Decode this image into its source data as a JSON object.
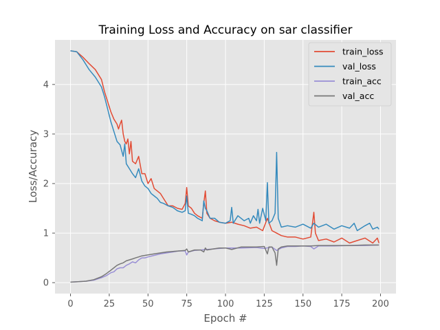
{
  "chart_data": {
    "type": "line",
    "title": "Training Loss and Accuracy on sar classifier",
    "xlabel": "Epoch #",
    "ylabel": "Loss/Accuracy",
    "xlim": [
      -10,
      210
    ],
    "ylim": [
      -0.22,
      4.9
    ],
    "xticks": [
      0,
      25,
      50,
      75,
      100,
      125,
      150,
      175,
      200
    ],
    "yticks": [
      0,
      1,
      2,
      3,
      4
    ],
    "grid": true,
    "legend_position": "top-right",
    "series": [
      {
        "name": "train_loss",
        "color": "#E24A33",
        "x": [
          0,
          4,
          8,
          12,
          16,
          20,
          22,
          24,
          26,
          28,
          30,
          31,
          32,
          33,
          34,
          35,
          36,
          37,
          38,
          39,
          40,
          42,
          44,
          46,
          48,
          50,
          52,
          54,
          56,
          58,
          60,
          63,
          66,
          69,
          72,
          74,
          75,
          76,
          78,
          80,
          82,
          85,
          86,
          87,
          88,
          90,
          93,
          96,
          100,
          104,
          108,
          112,
          116,
          120,
          124,
          127,
          130,
          133,
          136,
          140,
          145,
          150,
          155,
          157,
          158,
          160,
          165,
          170,
          175,
          180,
          185,
          190,
          195,
          198,
          199
        ],
        "y": [
          4.68,
          4.66,
          4.55,
          4.42,
          4.3,
          4.1,
          3.85,
          3.65,
          3.45,
          3.3,
          3.2,
          3.1,
          3.2,
          3.28,
          3.0,
          2.85,
          2.8,
          2.9,
          2.6,
          2.85,
          2.45,
          2.4,
          2.55,
          2.2,
          2.2,
          2.0,
          2.1,
          1.9,
          1.85,
          1.8,
          1.7,
          1.55,
          1.55,
          1.5,
          1.48,
          1.6,
          1.92,
          1.55,
          1.5,
          1.4,
          1.35,
          1.3,
          1.6,
          1.85,
          1.4,
          1.3,
          1.25,
          1.22,
          1.2,
          1.22,
          1.18,
          1.15,
          1.1,
          1.12,
          1.05,
          1.3,
          1.05,
          1.0,
          0.95,
          0.92,
          0.92,
          0.88,
          0.92,
          1.42,
          1.0,
          0.85,
          0.88,
          0.82,
          0.9,
          0.8,
          0.85,
          0.9,
          0.8,
          0.9,
          0.8
        ]
      },
      {
        "name": "val_loss",
        "color": "#348ABD",
        "x": [
          0,
          4,
          8,
          12,
          16,
          20,
          22,
          24,
          26,
          28,
          30,
          32,
          34,
          35,
          36,
          38,
          40,
          42,
          44,
          46,
          48,
          50,
          52,
          54,
          56,
          58,
          60,
          63,
          66,
          69,
          72,
          74,
          75,
          76,
          78,
          80,
          82,
          85,
          86,
          87,
          88,
          90,
          93,
          96,
          100,
          103,
          104,
          105,
          108,
          112,
          115,
          116,
          118,
          120,
          121,
          122,
          124,
          126,
          127,
          128,
          130,
          132,
          133,
          134,
          136,
          140,
          145,
          150,
          155,
          157,
          160,
          165,
          170,
          175,
          180,
          183,
          185,
          190,
          193,
          195,
          198,
          199
        ],
        "y": [
          4.68,
          4.66,
          4.5,
          4.3,
          4.15,
          3.95,
          3.75,
          3.5,
          3.25,
          3.05,
          2.85,
          2.78,
          2.55,
          2.8,
          2.4,
          2.3,
          2.2,
          2.12,
          2.3,
          2.05,
          1.95,
          1.9,
          1.8,
          1.75,
          1.7,
          1.62,
          1.6,
          1.55,
          1.52,
          1.45,
          1.42,
          1.45,
          1.75,
          1.4,
          1.38,
          1.35,
          1.3,
          1.25,
          1.65,
          1.5,
          1.45,
          1.3,
          1.3,
          1.22,
          1.2,
          1.25,
          1.52,
          1.2,
          1.35,
          1.25,
          1.3,
          1.2,
          1.35,
          1.25,
          1.48,
          1.2,
          1.5,
          1.25,
          2.02,
          1.2,
          1.25,
          1.4,
          2.63,
          1.3,
          1.12,
          1.15,
          1.12,
          1.18,
          1.1,
          1.2,
          1.12,
          1.18,
          1.08,
          1.15,
          1.1,
          1.2,
          1.05,
          1.15,
          1.2,
          1.08,
          1.12,
          1.08
        ]
      },
      {
        "name": "train_acc",
        "color": "#988ED5",
        "x": [
          0,
          5,
          10,
          15,
          20,
          23,
          26,
          28,
          30,
          32,
          34,
          36,
          38,
          40,
          42,
          44,
          46,
          48,
          50,
          54,
          58,
          62,
          66,
          70,
          74,
          75,
          76,
          80,
          84,
          88,
          92,
          96,
          100,
          110,
          120,
          125,
          130,
          133,
          136,
          140,
          145,
          150,
          155,
          157,
          160,
          170,
          180,
          190,
          199
        ],
        "y": [
          0.01,
          0.02,
          0.03,
          0.05,
          0.1,
          0.14,
          0.2,
          0.22,
          0.28,
          0.3,
          0.3,
          0.35,
          0.38,
          0.42,
          0.4,
          0.46,
          0.5,
          0.5,
          0.52,
          0.55,
          0.58,
          0.6,
          0.62,
          0.64,
          0.64,
          0.56,
          0.62,
          0.65,
          0.66,
          0.67,
          0.68,
          0.69,
          0.7,
          0.7,
          0.71,
          0.69,
          0.72,
          0.65,
          0.7,
          0.73,
          0.73,
          0.74,
          0.73,
          0.68,
          0.74,
          0.74,
          0.75,
          0.75,
          0.76
        ]
      },
      {
        "name": "val_acc",
        "color": "#777777",
        "x": [
          0,
          5,
          10,
          15,
          20,
          23,
          26,
          28,
          30,
          32,
          34,
          36,
          38,
          40,
          42,
          44,
          46,
          48,
          50,
          54,
          58,
          62,
          66,
          70,
          74,
          75,
          76,
          80,
          84,
          86,
          87,
          88,
          92,
          96,
          100,
          104,
          110,
          120,
          125,
          127,
          128,
          130,
          132,
          133,
          134,
          136,
          140,
          145,
          150,
          155,
          160,
          170,
          180,
          190,
          199
        ],
        "y": [
          0.01,
          0.02,
          0.03,
          0.06,
          0.12,
          0.18,
          0.25,
          0.3,
          0.35,
          0.38,
          0.4,
          0.44,
          0.46,
          0.48,
          0.5,
          0.52,
          0.54,
          0.55,
          0.56,
          0.58,
          0.6,
          0.62,
          0.63,
          0.64,
          0.65,
          0.68,
          0.62,
          0.66,
          0.66,
          0.62,
          0.7,
          0.66,
          0.68,
          0.7,
          0.7,
          0.67,
          0.72,
          0.72,
          0.73,
          0.58,
          0.72,
          0.72,
          0.6,
          0.35,
          0.68,
          0.72,
          0.74,
          0.74,
          0.74,
          0.74,
          0.75,
          0.75,
          0.75,
          0.76,
          0.76
        ]
      }
    ]
  }
}
